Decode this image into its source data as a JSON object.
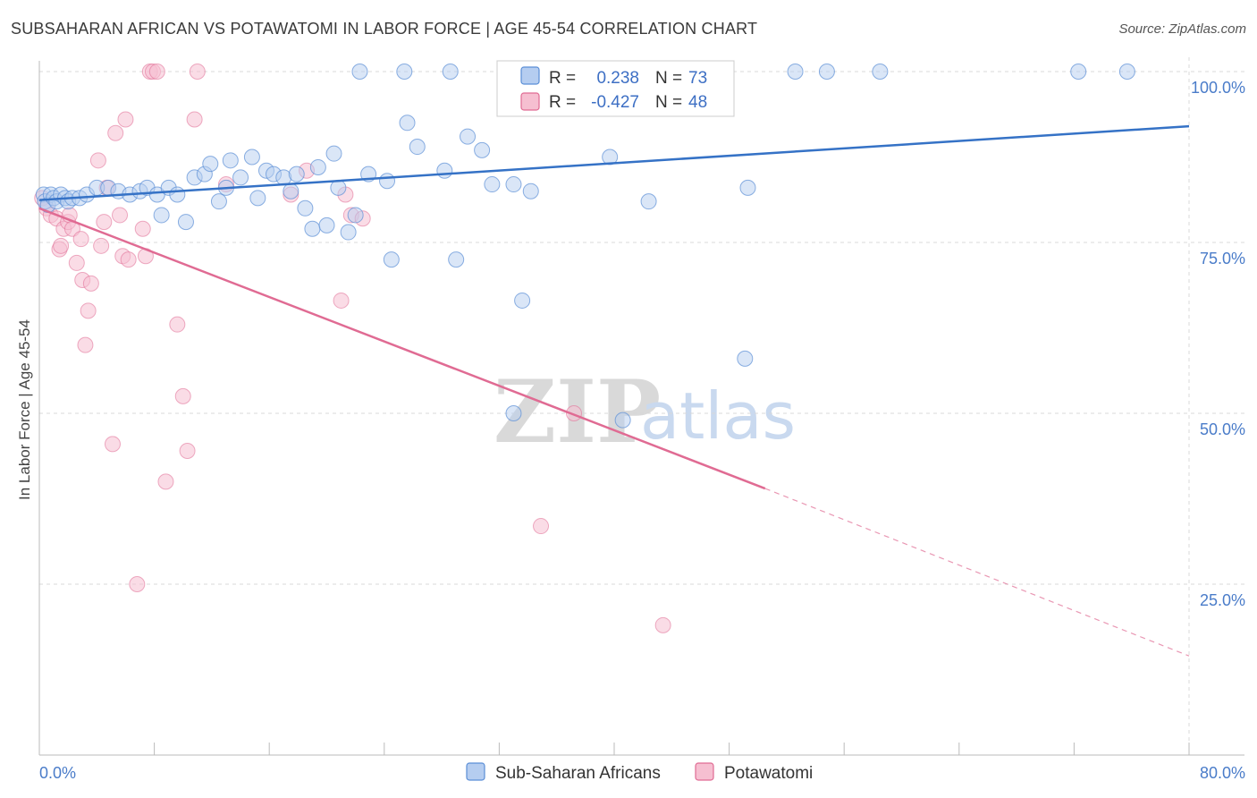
{
  "header": {
    "title": "SUBSAHARAN AFRICAN VS POTAWATOMI IN LABOR FORCE | AGE 45-54 CORRELATION CHART",
    "source": "Source: ZipAtlas.com"
  },
  "watermark": {
    "zip": "ZIP",
    "atlas": "atlas"
  },
  "colors": {
    "blue": "#5b8ed6",
    "blue_fill": "#b5cdf0",
    "pink": "#e06b93",
    "pink_fill": "#f6bfd1",
    "grid": "#d8d8d8",
    "axis_text": "#4a7cc9"
  },
  "legend": {
    "rows": [
      {
        "r_label": "R =",
        "r_value": "0.238",
        "n_label": "N =",
        "n_value": "73"
      },
      {
        "r_label": "R =",
        "r_value": "-0.427",
        "n_label": "N =",
        "n_value": "48"
      }
    ]
  },
  "bottom_legend": [
    "Sub-Saharan Africans",
    "Potawatomi"
  ],
  "chart_data": {
    "type": "scatter",
    "title": "SUBSAHARAN AFRICAN VS POTAWATOMI IN LABOR FORCE | AGE 45-54 CORRELATION CHART",
    "xlabel": "",
    "ylabel": "In Labor Force | Age 45-54",
    "xlim": [
      0,
      80
    ],
    "ylim": [
      0,
      105
    ],
    "x_tick_labels": [
      "0.0%",
      "80.0%"
    ],
    "y_ticks": [
      25,
      50,
      75,
      100
    ],
    "y_tick_labels": [
      "25.0%",
      "50.0%",
      "75.0%",
      "100.0%"
    ],
    "grid": true,
    "legend_position": "top-center",
    "series": [
      {
        "name": "Sub-Saharan Africans",
        "color": "#5b8ed6",
        "r": 0.238,
        "n": 73,
        "trend": {
          "x": [
            0,
            80
          ],
          "y": [
            81.2,
            92.0
          ]
        },
        "points": [
          [
            0.3,
            82
          ],
          [
            0.4,
            81
          ],
          [
            0.6,
            80.5
          ],
          [
            0.8,
            82
          ],
          [
            1.0,
            81.5
          ],
          [
            1.2,
            81
          ],
          [
            1.5,
            82
          ],
          [
            1.8,
            81.5
          ],
          [
            2.0,
            81
          ],
          [
            2.3,
            81.5
          ],
          [
            2.8,
            81.5
          ],
          [
            3.3,
            82
          ],
          [
            4.0,
            83
          ],
          [
            4.8,
            83
          ],
          [
            5.5,
            82.5
          ],
          [
            6.3,
            82
          ],
          [
            7.0,
            82.5
          ],
          [
            7.5,
            83
          ],
          [
            8.2,
            82
          ],
          [
            9.0,
            83
          ],
          [
            9.6,
            82
          ],
          [
            8.5,
            79
          ],
          [
            10.2,
            78
          ],
          [
            10.8,
            84.5
          ],
          [
            11.5,
            85
          ],
          [
            11.9,
            86.5
          ],
          [
            12.5,
            81
          ],
          [
            13.0,
            83
          ],
          [
            13.3,
            87
          ],
          [
            14.0,
            84.5
          ],
          [
            14.8,
            87.5
          ],
          [
            15.2,
            81.5
          ],
          [
            15.8,
            85.5
          ],
          [
            16.3,
            85
          ],
          [
            17.0,
            84.5
          ],
          [
            17.5,
            82.5
          ],
          [
            17.9,
            85
          ],
          [
            18.5,
            80
          ],
          [
            19.0,
            77
          ],
          [
            19.4,
            86
          ],
          [
            20.0,
            77.5
          ],
          [
            20.5,
            88
          ],
          [
            20.8,
            83
          ],
          [
            21.5,
            76.5
          ],
          [
            22.0,
            79
          ],
          [
            22.9,
            85
          ],
          [
            24.2,
            84
          ],
          [
            24.5,
            72.5
          ],
          [
            25.6,
            92.5
          ],
          [
            26.3,
            89
          ],
          [
            28.2,
            85.5
          ],
          [
            29.0,
            72.5
          ],
          [
            29.8,
            90.5
          ],
          [
            30.8,
            88.5
          ],
          [
            31.5,
            83.5
          ],
          [
            33.0,
            83.5
          ],
          [
            34.2,
            82.5
          ],
          [
            33.6,
            66.5
          ],
          [
            33.0,
            50
          ],
          [
            39.7,
            87.5
          ],
          [
            40.6,
            49
          ],
          [
            42.4,
            81
          ],
          [
            49.1,
            58
          ],
          [
            49.3,
            83
          ],
          [
            22.3,
            100
          ],
          [
            25.4,
            100
          ],
          [
            28.6,
            100
          ],
          [
            43.5,
            100
          ],
          [
            52.6,
            100
          ],
          [
            54.8,
            100
          ],
          [
            58.5,
            100
          ],
          [
            72.3,
            100
          ],
          [
            75.7,
            100
          ]
        ]
      },
      {
        "name": "Potawatomi",
        "color": "#e06b93",
        "r": -0.427,
        "n": 48,
        "trend": {
          "x": [
            0,
            50.5
          ],
          "y": [
            80.0,
            39.0
          ]
        },
        "trend_dashed": {
          "x": [
            50.5,
            80
          ],
          "y": [
            39.0,
            14.5
          ]
        },
        "points": [
          [
            0.2,
            81.5
          ],
          [
            0.5,
            80
          ],
          [
            0.8,
            79
          ],
          [
            1.2,
            78.5
          ],
          [
            1.4,
            74
          ],
          [
            1.5,
            74.5
          ],
          [
            1.7,
            77
          ],
          [
            2.0,
            78
          ],
          [
            2.1,
            79
          ],
          [
            2.3,
            77
          ],
          [
            2.6,
            72
          ],
          [
            2.9,
            75.5
          ],
          [
            3.0,
            69.5
          ],
          [
            3.2,
            60
          ],
          [
            3.4,
            65
          ],
          [
            3.6,
            69
          ],
          [
            4.1,
            87
          ],
          [
            4.3,
            74.5
          ],
          [
            4.5,
            78
          ],
          [
            4.7,
            83
          ],
          [
            5.1,
            45.5
          ],
          [
            5.3,
            91
          ],
          [
            5.6,
            79
          ],
          [
            5.8,
            73
          ],
          [
            6.0,
            93
          ],
          [
            6.2,
            72.5
          ],
          [
            6.8,
            25
          ],
          [
            7.2,
            77
          ],
          [
            7.4,
            73
          ],
          [
            7.7,
            100
          ],
          [
            7.9,
            100
          ],
          [
            8.2,
            100
          ],
          [
            8.8,
            40
          ],
          [
            9.6,
            63
          ],
          [
            10.0,
            52.5
          ],
          [
            10.3,
            44.5
          ],
          [
            10.8,
            93
          ],
          [
            11.0,
            100
          ],
          [
            13.0,
            83.5
          ],
          [
            17.5,
            82
          ],
          [
            18.6,
            85.5
          ],
          [
            21.3,
            82
          ],
          [
            21.7,
            79
          ],
          [
            22.5,
            78.5
          ],
          [
            21.0,
            66.5
          ],
          [
            34.9,
            33.5
          ],
          [
            37.2,
            50
          ],
          [
            43.4,
            19
          ]
        ]
      }
    ]
  }
}
